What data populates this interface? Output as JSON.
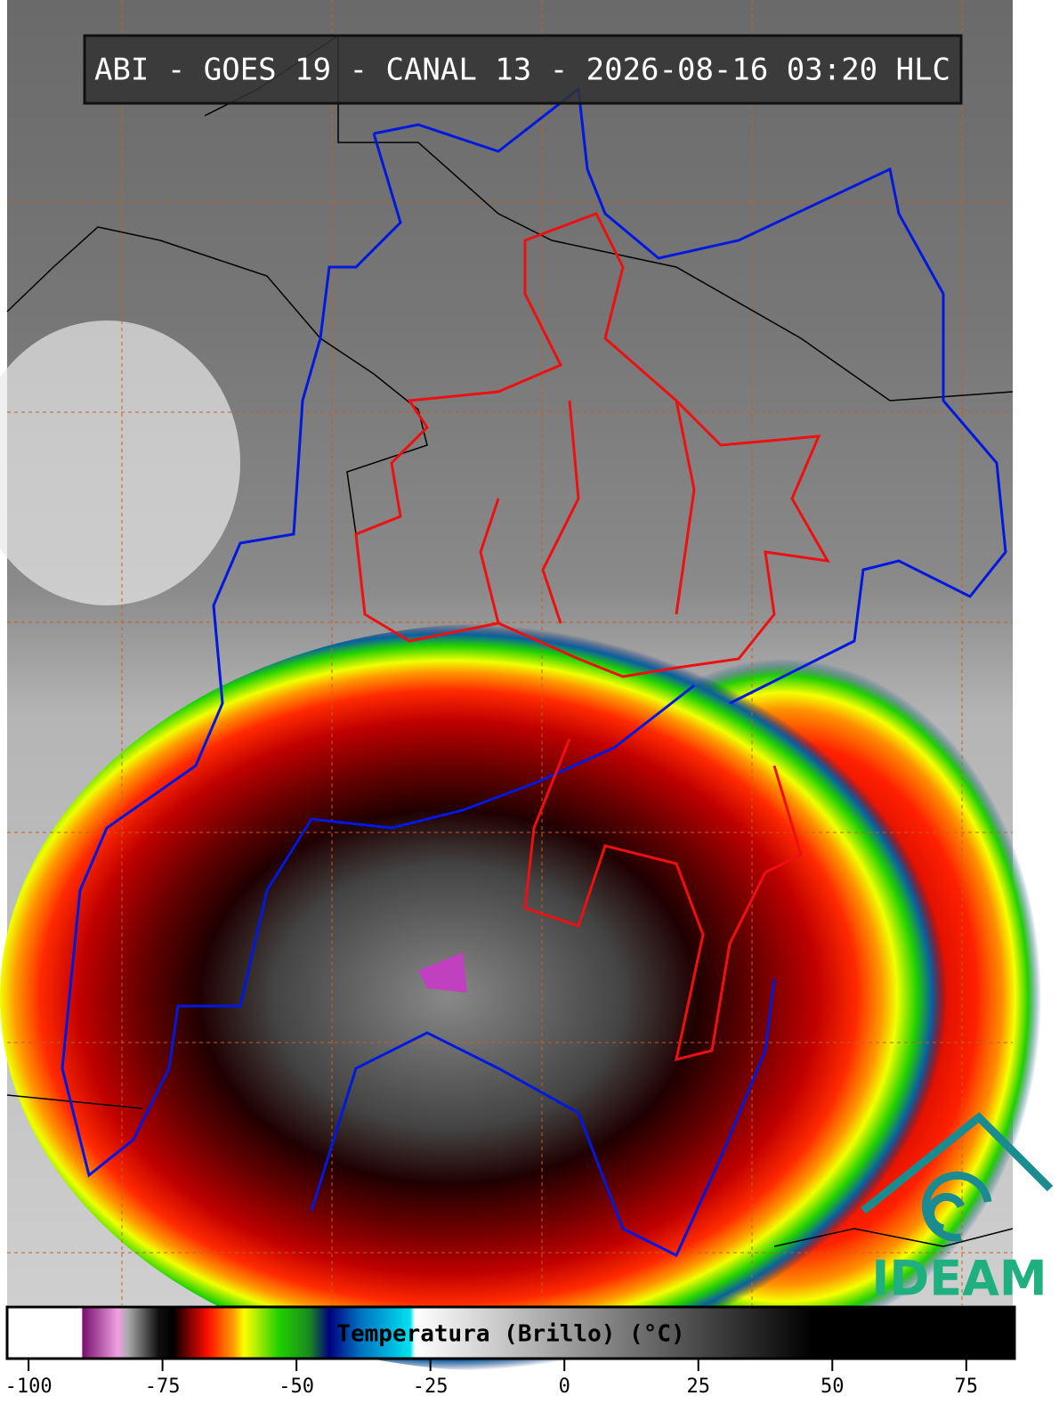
{
  "header": {
    "title": "ABI - GOES 19 - CANAL 13 - 2026-08-16 03:20 HLC"
  },
  "colorbar": {
    "label": "Temperatura (Brillo) (°C)",
    "range": [
      -104,
      84
    ],
    "ticks": [
      -100,
      -75,
      -50,
      -25,
      0,
      25,
      50,
      75
    ]
  },
  "logo": {
    "text": "IDEAM"
  }
}
